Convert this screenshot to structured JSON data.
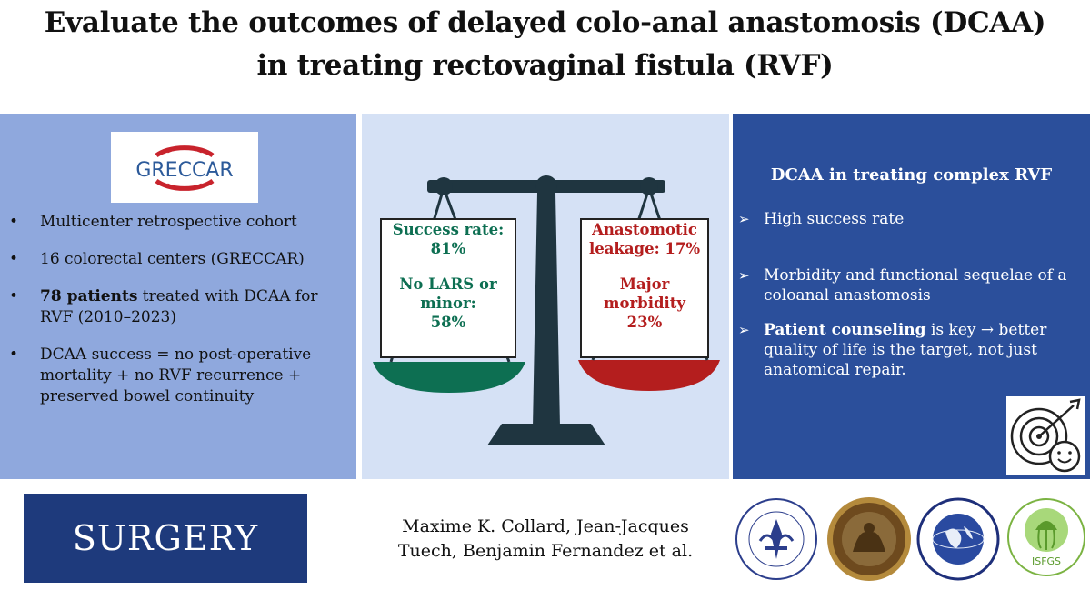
{
  "title": {
    "line1": "Evaluate the outcomes of delayed colo-anal anastomosis (DCAA)",
    "line2": "in treating rectovaginal fistula (RVF)"
  },
  "left": {
    "logo_text": "GRECCAR",
    "items": [
      {
        "text": "Multicenter retrospective cohort"
      },
      {
        "text": "16 colorectal centers (GRECCAR)"
      },
      {
        "bold": "78 patients",
        "text": " treated with DCAA for RVF (2010–2023)"
      },
      {
        "text": "DCAA success = no post-operative mortality + no RVF recurrence  + preserved bowel continuity"
      }
    ]
  },
  "middle": {
    "green_box": {
      "line1": "Success rate:",
      "line2": "81%",
      "line3": "No LARS or",
      "line4": "minor:",
      "line5": "58%"
    },
    "red_box": {
      "line1": "Anastomotic",
      "line2": "leakage: 17%",
      "line3": "Major",
      "line4": "morbidity",
      "line5": "23%"
    }
  },
  "right": {
    "heading": "DCAA in treating complex RVF",
    "items": [
      {
        "text": "High success rate"
      },
      {
        "text": "Morbidity and functional sequelae of a coloanal anastomosis"
      },
      {
        "bold": "Patient counseling",
        "text": " is key → better quality of life is the target, not just anatomical repair."
      }
    ]
  },
  "footer": {
    "journal": "SURGERY",
    "authors_line1": "Maxime K. Collard, Jean-Jacques",
    "authors_line2": "Tuech, Benjamin Fernandez et al.",
    "seal4_label": "ISFGS"
  },
  "colors": {
    "left_bg": "#8fa8dd",
    "middle_bg": "#d5e1f5",
    "right_bg": "#2b4f9b",
    "journal_bg": "#1e3a7c",
    "green": "#0d6f52",
    "red": "#b41e1e",
    "scale_dark": "#1f3540"
  }
}
